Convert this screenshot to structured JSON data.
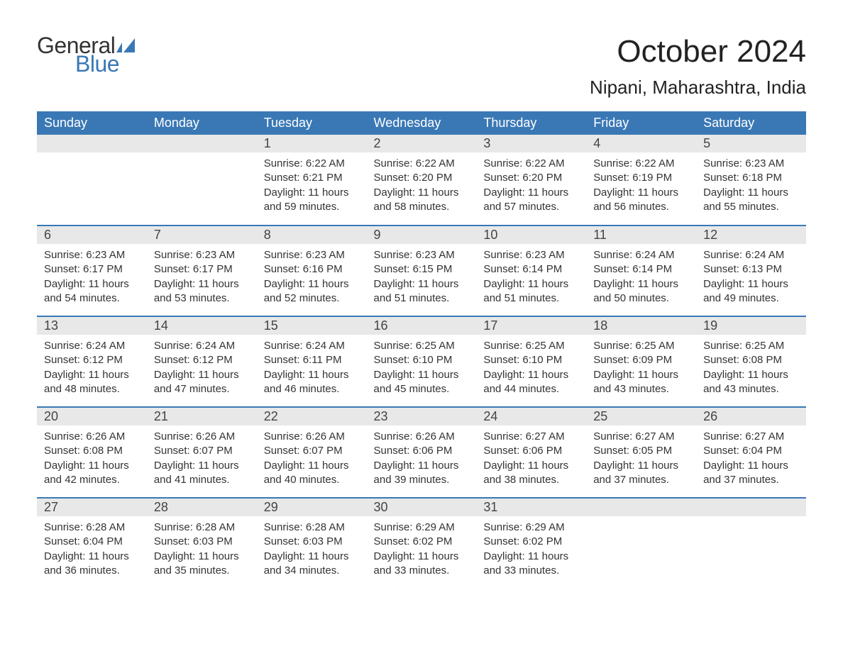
{
  "brand": {
    "word1": "General",
    "word2": "Blue",
    "flag_color": "#3a78b5"
  },
  "title": "October 2024",
  "location": "Nipani, Maharashtra, India",
  "colors": {
    "header_bg": "#3a78b5",
    "header_text": "#ffffff",
    "daynum_bg": "#e8e8e8",
    "row_divider": "#3a78b5",
    "body_text": "#333333",
    "background": "#ffffff"
  },
  "typography": {
    "title_fontsize": 44,
    "location_fontsize": 26,
    "dayheader_fontsize": 18,
    "daynum_fontsize": 18,
    "body_fontsize": 15
  },
  "layout": {
    "columns": 7,
    "rows": 5,
    "first_weekday": "Sunday"
  },
  "day_headers": [
    "Sunday",
    "Monday",
    "Tuesday",
    "Wednesday",
    "Thursday",
    "Friday",
    "Saturday"
  ],
  "weeks": [
    [
      null,
      null,
      {
        "n": "1",
        "sunrise": "6:22 AM",
        "sunset": "6:21 PM",
        "daylight": "11 hours and 59 minutes."
      },
      {
        "n": "2",
        "sunrise": "6:22 AM",
        "sunset": "6:20 PM",
        "daylight": "11 hours and 58 minutes."
      },
      {
        "n": "3",
        "sunrise": "6:22 AM",
        "sunset": "6:20 PM",
        "daylight": "11 hours and 57 minutes."
      },
      {
        "n": "4",
        "sunrise": "6:22 AM",
        "sunset": "6:19 PM",
        "daylight": "11 hours and 56 minutes."
      },
      {
        "n": "5",
        "sunrise": "6:23 AM",
        "sunset": "6:18 PM",
        "daylight": "11 hours and 55 minutes."
      }
    ],
    [
      {
        "n": "6",
        "sunrise": "6:23 AM",
        "sunset": "6:17 PM",
        "daylight": "11 hours and 54 minutes."
      },
      {
        "n": "7",
        "sunrise": "6:23 AM",
        "sunset": "6:17 PM",
        "daylight": "11 hours and 53 minutes."
      },
      {
        "n": "8",
        "sunrise": "6:23 AM",
        "sunset": "6:16 PM",
        "daylight": "11 hours and 52 minutes."
      },
      {
        "n": "9",
        "sunrise": "6:23 AM",
        "sunset": "6:15 PM",
        "daylight": "11 hours and 51 minutes."
      },
      {
        "n": "10",
        "sunrise": "6:23 AM",
        "sunset": "6:14 PM",
        "daylight": "11 hours and 51 minutes."
      },
      {
        "n": "11",
        "sunrise": "6:24 AM",
        "sunset": "6:14 PM",
        "daylight": "11 hours and 50 minutes."
      },
      {
        "n": "12",
        "sunrise": "6:24 AM",
        "sunset": "6:13 PM",
        "daylight": "11 hours and 49 minutes."
      }
    ],
    [
      {
        "n": "13",
        "sunrise": "6:24 AM",
        "sunset": "6:12 PM",
        "daylight": "11 hours and 48 minutes."
      },
      {
        "n": "14",
        "sunrise": "6:24 AM",
        "sunset": "6:12 PM",
        "daylight": "11 hours and 47 minutes."
      },
      {
        "n": "15",
        "sunrise": "6:24 AM",
        "sunset": "6:11 PM",
        "daylight": "11 hours and 46 minutes."
      },
      {
        "n": "16",
        "sunrise": "6:25 AM",
        "sunset": "6:10 PM",
        "daylight": "11 hours and 45 minutes."
      },
      {
        "n": "17",
        "sunrise": "6:25 AM",
        "sunset": "6:10 PM",
        "daylight": "11 hours and 44 minutes."
      },
      {
        "n": "18",
        "sunrise": "6:25 AM",
        "sunset": "6:09 PM",
        "daylight": "11 hours and 43 minutes."
      },
      {
        "n": "19",
        "sunrise": "6:25 AM",
        "sunset": "6:08 PM",
        "daylight": "11 hours and 43 minutes."
      }
    ],
    [
      {
        "n": "20",
        "sunrise": "6:26 AM",
        "sunset": "6:08 PM",
        "daylight": "11 hours and 42 minutes."
      },
      {
        "n": "21",
        "sunrise": "6:26 AM",
        "sunset": "6:07 PM",
        "daylight": "11 hours and 41 minutes."
      },
      {
        "n": "22",
        "sunrise": "6:26 AM",
        "sunset": "6:07 PM",
        "daylight": "11 hours and 40 minutes."
      },
      {
        "n": "23",
        "sunrise": "6:26 AM",
        "sunset": "6:06 PM",
        "daylight": "11 hours and 39 minutes."
      },
      {
        "n": "24",
        "sunrise": "6:27 AM",
        "sunset": "6:06 PM",
        "daylight": "11 hours and 38 minutes."
      },
      {
        "n": "25",
        "sunrise": "6:27 AM",
        "sunset": "6:05 PM",
        "daylight": "11 hours and 37 minutes."
      },
      {
        "n": "26",
        "sunrise": "6:27 AM",
        "sunset": "6:04 PM",
        "daylight": "11 hours and 37 minutes."
      }
    ],
    [
      {
        "n": "27",
        "sunrise": "6:28 AM",
        "sunset": "6:04 PM",
        "daylight": "11 hours and 36 minutes."
      },
      {
        "n": "28",
        "sunrise": "6:28 AM",
        "sunset": "6:03 PM",
        "daylight": "11 hours and 35 minutes."
      },
      {
        "n": "29",
        "sunrise": "6:28 AM",
        "sunset": "6:03 PM",
        "daylight": "11 hours and 34 minutes."
      },
      {
        "n": "30",
        "sunrise": "6:29 AM",
        "sunset": "6:02 PM",
        "daylight": "11 hours and 33 minutes."
      },
      {
        "n": "31",
        "sunrise": "6:29 AM",
        "sunset": "6:02 PM",
        "daylight": "11 hours and 33 minutes."
      },
      null,
      null
    ]
  ],
  "labels": {
    "sunrise": "Sunrise: ",
    "sunset": "Sunset: ",
    "daylight": "Daylight: "
  }
}
